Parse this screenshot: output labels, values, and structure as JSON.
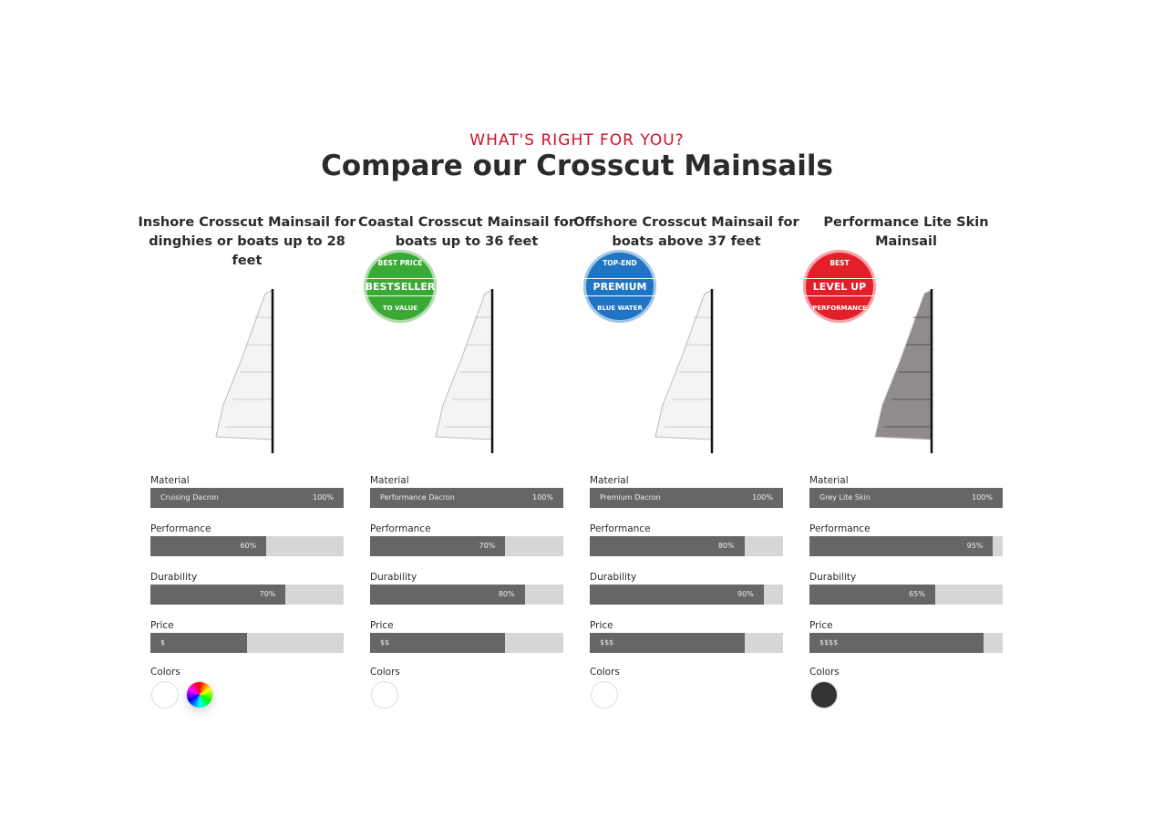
{
  "header": {
    "eyebrow": "WHAT'S RIGHT FOR YOU?",
    "title": "Compare our Crosscut Mainsails"
  },
  "colors_label": "Colors",
  "products": [
    {
      "title": "Inshore Crosscut Mainsail for dinghies or boats up to 28 feet",
      "sail": "#f4f4f4",
      "metrics": [
        {
          "name": "Material",
          "text": "Cruising Dacron",
          "value": 100,
          "label": "100%"
        },
        {
          "name": "Performance",
          "value": 60,
          "label": "60%"
        },
        {
          "name": "Durability",
          "value": 70,
          "label": "70%"
        },
        {
          "name": "Price",
          "value": 50,
          "label": "$"
        }
      ],
      "swatches": [
        "#ffffff",
        "conic-gradient(red, yellow, lime, cyan, blue, magenta, red)"
      ]
    },
    {
      "title": "Coastal Crosscut Mainsail for boats up to 36 feet",
      "sail": "#f4f4f4",
      "badge": {
        "top": "BEST PRICE",
        "main": "BESTSELLER",
        "bottom": "TO VALUE",
        "color": "#3aa935"
      },
      "metrics": [
        {
          "name": "Material",
          "text": "Performance Dacron",
          "value": 100,
          "label": "100%"
        },
        {
          "name": "Performance",
          "value": 70,
          "label": "70%"
        },
        {
          "name": "Durability",
          "value": 80,
          "label": "80%"
        },
        {
          "name": "Price",
          "value": 70,
          "label": "$$"
        }
      ],
      "swatches": [
        "#ffffff"
      ]
    },
    {
      "title": "Offshore Crosscut Mainsail for boats above 37 feet",
      "sail": "#f4f4f4",
      "badge": {
        "top": "TOP-END",
        "main": "PREMIUM",
        "bottom": "BLUE WATER",
        "color": "#1f74c4"
      },
      "metrics": [
        {
          "name": "Material",
          "text": "Premium Dacron",
          "value": 100,
          "label": "100%"
        },
        {
          "name": "Performance",
          "value": 80,
          "label": "80%"
        },
        {
          "name": "Durability",
          "value": 90,
          "label": "90%"
        },
        {
          "name": "Price",
          "value": 80,
          "label": "$$$"
        }
      ],
      "swatches": [
        "#ffffff"
      ]
    },
    {
      "title": "Performance Lite Skin Mainsail",
      "sail": "#8f8c8b",
      "badge": {
        "top": "BEST",
        "main": "LEVEL UP",
        "bottom": "PERFORMANCE",
        "color": "#e3202a"
      },
      "metrics": [
        {
          "name": "Material",
          "text": "Grey Lite Skin",
          "value": 100,
          "label": "100%"
        },
        {
          "name": "Performance",
          "value": 95,
          "label": "95%"
        },
        {
          "name": "Durability",
          "value": 65,
          "label": "65%"
        },
        {
          "name": "Price",
          "value": 90,
          "label": "$$$$"
        }
      ],
      "swatches": [
        "#333333"
      ]
    }
  ]
}
